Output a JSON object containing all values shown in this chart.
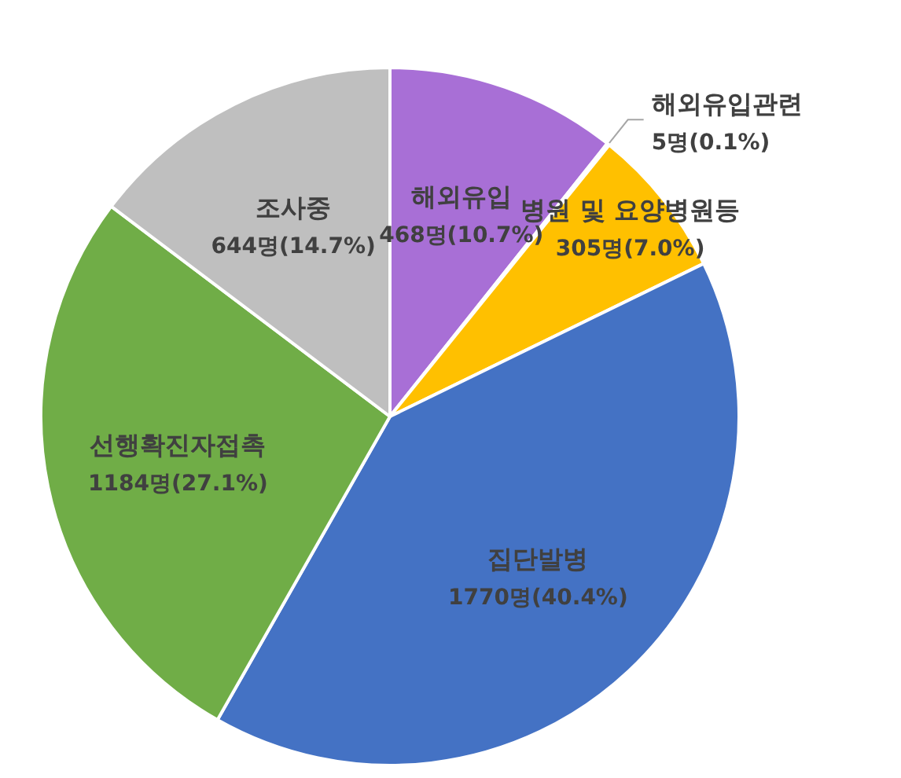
{
  "chart_data": {
    "type": "pie",
    "categories": [
      "해외유입",
      "해외유입관련",
      "병원 및 요양병원등",
      "집단발병",
      "선행확진자접촉",
      "조사중"
    ],
    "values": [
      468,
      5,
      305,
      1770,
      1184,
      644
    ],
    "value_labels": [
      "468명(10.7%)",
      "5명(0.1%)",
      "305명(7.0%)",
      "1770명(40.4%)",
      "1184명(27.1%)",
      "644명(14.7%)"
    ],
    "colors": [
      "#a86fd6",
      "#ed7d31",
      "#ffc000",
      "#4472c4",
      "#70ad47",
      "#bfbfbf"
    ],
    "legend": false
  }
}
